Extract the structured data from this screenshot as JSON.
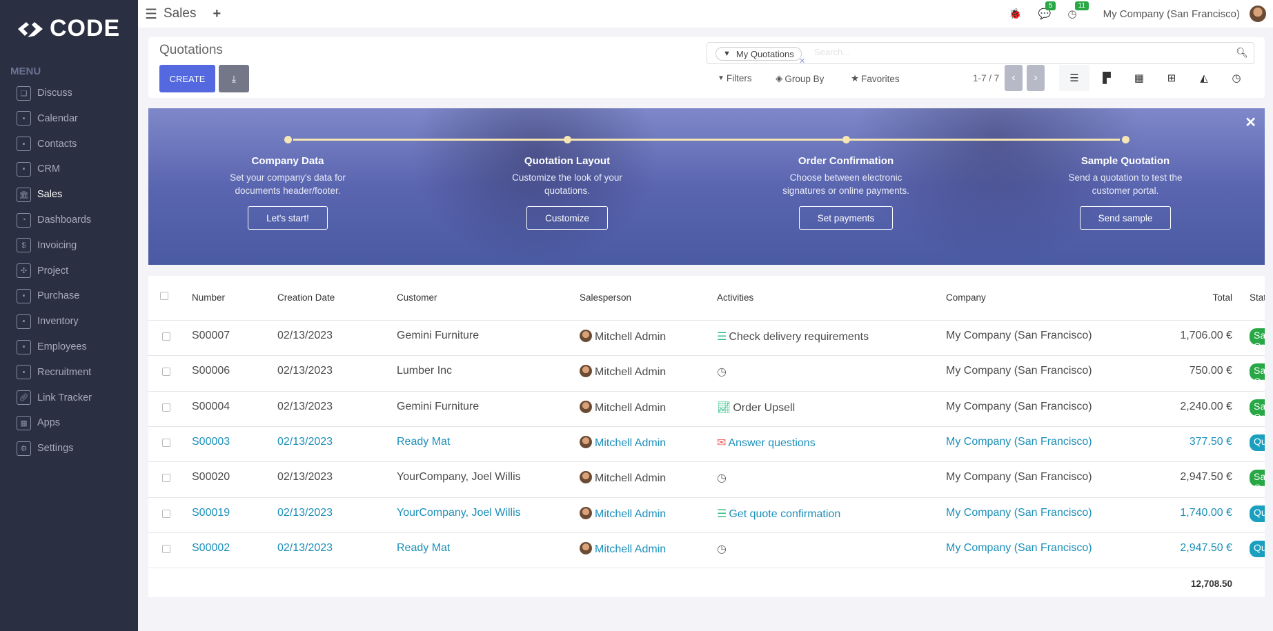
{
  "sidebar": {
    "logo": "CODE",
    "menu_label": "MENU",
    "items": [
      {
        "label": "Discuss",
        "icon": "chat-icon"
      },
      {
        "label": "Calendar",
        "icon": "app-icon"
      },
      {
        "label": "Contacts",
        "icon": "app-icon"
      },
      {
        "label": "CRM",
        "icon": "app-icon"
      },
      {
        "label": "Sales",
        "icon": "bank-icon",
        "active": true
      },
      {
        "label": "Dashboards",
        "icon": "gauge-icon"
      },
      {
        "label": "Invoicing",
        "icon": "invoice-icon"
      },
      {
        "label": "Project",
        "icon": "puzzle-icon"
      },
      {
        "label": "Purchase",
        "icon": "app-icon"
      },
      {
        "label": "Inventory",
        "icon": "app-icon"
      },
      {
        "label": "Employees",
        "icon": "app-icon"
      },
      {
        "label": "Recruitment",
        "icon": "app-icon"
      },
      {
        "label": "Link Tracker",
        "icon": "link-icon"
      },
      {
        "label": "Apps",
        "icon": "grid-icon"
      },
      {
        "label": "Settings",
        "icon": "gear-icon"
      }
    ]
  },
  "topbar": {
    "app_title": "Sales",
    "messages_count": "5",
    "activities_count": "11",
    "company": "My Company (San Francisco)"
  },
  "control": {
    "title": "Quotations",
    "create_label": "CREATE",
    "facet": "My Quotations",
    "search_placeholder": "Search...",
    "filters": "Filters",
    "group_by": "Group By",
    "favorites": "Favorites",
    "pager": "1-7 / 7"
  },
  "banner": {
    "steps": [
      {
        "title": "Company Data",
        "desc1": "Set your company's data for",
        "desc2": "documents header/footer.",
        "button": "Let's start!"
      },
      {
        "title": "Quotation Layout",
        "desc1": "Customize the look of your",
        "desc2": "quotations.",
        "button": "Customize"
      },
      {
        "title": "Order Confirmation",
        "desc1": "Choose between electronic",
        "desc2": "signatures or online payments.",
        "button": "Set payments"
      },
      {
        "title": "Sample Quotation",
        "desc1": "Send a quotation to test the",
        "desc2": "customer portal.",
        "button": "Send sample"
      }
    ]
  },
  "table": {
    "columns": [
      "Number",
      "Creation Date",
      "Customer",
      "Salesperson",
      "Activities",
      "Company",
      "Total",
      "Status"
    ],
    "rows": [
      {
        "number": "S00007",
        "date": "02/13/2023",
        "customer": "Gemini Furniture",
        "salesperson": "Mitchell Admin",
        "activity": "Check delivery requirements",
        "activity_icon": "tasks-icon",
        "company": "My Company (San Francisco)",
        "total": "1,706.00 €",
        "status": "Sales Order",
        "link": false
      },
      {
        "number": "S00006",
        "date": "02/13/2023",
        "customer": "Lumber Inc",
        "salesperson": "Mitchell Admin",
        "activity": "",
        "activity_icon": "clock-icon",
        "company": "My Company (San Francisco)",
        "total": "750.00 €",
        "status": "Sales Order",
        "link": false
      },
      {
        "number": "S00004",
        "date": "02/13/2023",
        "customer": "Gemini Furniture",
        "salesperson": "Mitchell Admin",
        "activity": "Order Upsell",
        "activity_icon": "chart-line-icon",
        "company": "My Company (San Francisco)",
        "total": "2,240.00 €",
        "status": "Sales Order",
        "link": false
      },
      {
        "number": "S00003",
        "date": "02/13/2023",
        "customer": "Ready Mat",
        "salesperson": "Mitchell Admin",
        "activity": "Answer questions",
        "activity_icon": "envelope-icon",
        "company": "My Company (San Francisco)",
        "total": "377.50 €",
        "status": "Quotation",
        "link": true
      },
      {
        "number": "S00020",
        "date": "02/13/2023",
        "customer": "YourCompany, Joel Willis",
        "salesperson": "Mitchell Admin",
        "activity": "",
        "activity_icon": "clock-icon",
        "company": "My Company (San Francisco)",
        "total": "2,947.50 €",
        "status": "Sales Order",
        "link": false
      },
      {
        "number": "S00019",
        "date": "02/13/2023",
        "customer": "YourCompany, Joel Willis",
        "salesperson": "Mitchell Admin",
        "activity": "Get quote confirmation",
        "activity_icon": "tasks-icon",
        "company": "My Company (San Francisco)",
        "total": "1,740.00 €",
        "status": "Quotation",
        "link": true
      },
      {
        "number": "S00002",
        "date": "02/13/2023",
        "customer": "Ready Mat",
        "salesperson": "Mitchell Admin",
        "activity": "",
        "activity_icon": "clock-icon",
        "company": "My Company (San Francisco)",
        "total": "2,947.50 €",
        "status": "Quotation",
        "link": true
      }
    ],
    "sum_total": "12,708.50"
  },
  "colors": {
    "sidebar": "#2b2f42",
    "primary": "#5468e0",
    "link": "#1b8fb9",
    "sales_order": "#28a745",
    "quotation": "#1a9fbf",
    "badge": "#28a745"
  }
}
